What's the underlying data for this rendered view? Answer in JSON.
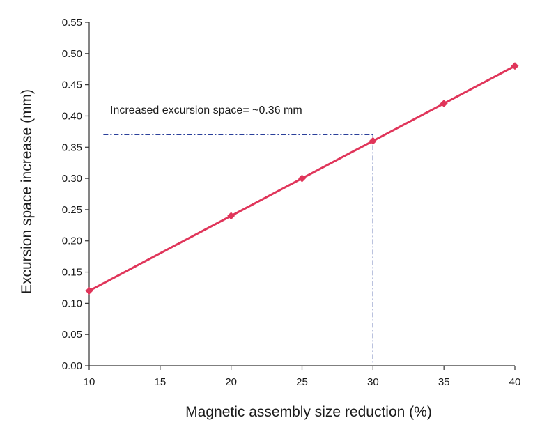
{
  "chart_data": {
    "type": "line",
    "xlabel": "Magnetic assembly size reduction (%)",
    "ylabel": "Excursion space increase (mm)",
    "xlim": [
      10,
      40
    ],
    "ylim": [
      0,
      0.55
    ],
    "x_ticks": [
      "10",
      "15",
      "20",
      "25",
      "30",
      "35",
      "40"
    ],
    "y_ticks": [
      "0.00",
      "0.05",
      "0.10",
      "0.15",
      "0.20",
      "0.25",
      "0.30",
      "0.35",
      "0.40",
      "0.45",
      "0.50",
      "0.55"
    ],
    "grid": false,
    "legend": "none",
    "series": [
      {
        "color": "#e0355a",
        "marker": "diamond",
        "x": [
          10,
          20,
          25,
          30,
          35,
          40
        ],
        "y": [
          0.12,
          0.24,
          0.3,
          0.36,
          0.42,
          0.48
        ]
      }
    ],
    "annotation": {
      "text": "Increased excursion space= ~0.36 mm",
      "guide_color": "#2a3f9a",
      "guide_x": 30,
      "guide_y": 0.37,
      "guide_x_start": 11
    }
  }
}
